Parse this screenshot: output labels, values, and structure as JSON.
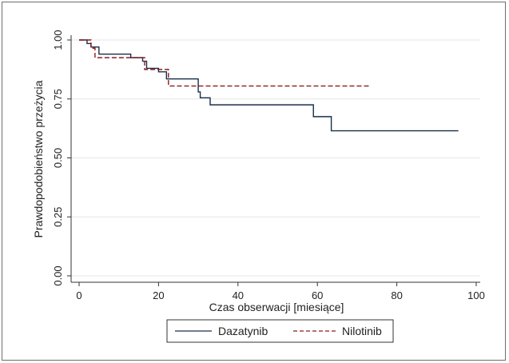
{
  "chart_data": {
    "type": "line",
    "subtype": "step",
    "title": "",
    "xlabel": "Czas obserwacji [miesiące]",
    "ylabel": "Prawdopodobieństwo przeżycia",
    "xlim": [
      0,
      100
    ],
    "ylim": [
      0,
      1
    ],
    "x_ticks": [
      "0",
      "20",
      "40",
      "60",
      "80",
      "100"
    ],
    "x_tick_values": [
      0,
      20,
      40,
      60,
      80,
      100
    ],
    "y_ticks": [
      "0.00",
      "0.25",
      "0.50",
      "0.75",
      "1.00"
    ],
    "y_tick_values": [
      0,
      0.25,
      0.5,
      0.75,
      1.0
    ],
    "grid": "horizontal",
    "legend_position": "bottom",
    "series": [
      {
        "name": "Dazatynib",
        "color": "#1a2e4a",
        "dash": "solid",
        "points": [
          [
            0,
            1.0
          ],
          [
            2,
            1.0
          ],
          [
            2,
            0.985
          ],
          [
            3,
            0.985
          ],
          [
            3,
            0.97
          ],
          [
            5,
            0.97
          ],
          [
            5,
            0.94
          ],
          [
            13,
            0.94
          ],
          [
            13,
            0.925
          ],
          [
            16,
            0.925
          ],
          [
            16,
            0.91
          ],
          [
            17,
            0.91
          ],
          [
            17,
            0.88
          ],
          [
            20,
            0.88
          ],
          [
            20,
            0.865
          ],
          [
            22,
            0.865
          ],
          [
            22,
            0.835
          ],
          [
            30,
            0.835
          ],
          [
            30,
            0.78
          ],
          [
            30.5,
            0.78
          ],
          [
            30.5,
            0.755
          ],
          [
            33,
            0.755
          ],
          [
            33,
            0.725
          ],
          [
            59,
            0.725
          ],
          [
            59,
            0.675
          ],
          [
            63.5,
            0.675
          ],
          [
            63.5,
            0.615
          ],
          [
            95.5,
            0.615
          ]
        ]
      },
      {
        "name": "Nilotinib",
        "color": "#8b1a1a",
        "dash": "dashed",
        "points": [
          [
            0,
            1.0
          ],
          [
            3,
            1.0
          ],
          [
            3,
            0.965
          ],
          [
            4,
            0.965
          ],
          [
            4,
            0.925
          ],
          [
            16.5,
            0.925
          ],
          [
            16.5,
            0.875
          ],
          [
            22.5,
            0.875
          ],
          [
            22.5,
            0.805
          ],
          [
            73,
            0.805
          ]
        ]
      }
    ]
  }
}
